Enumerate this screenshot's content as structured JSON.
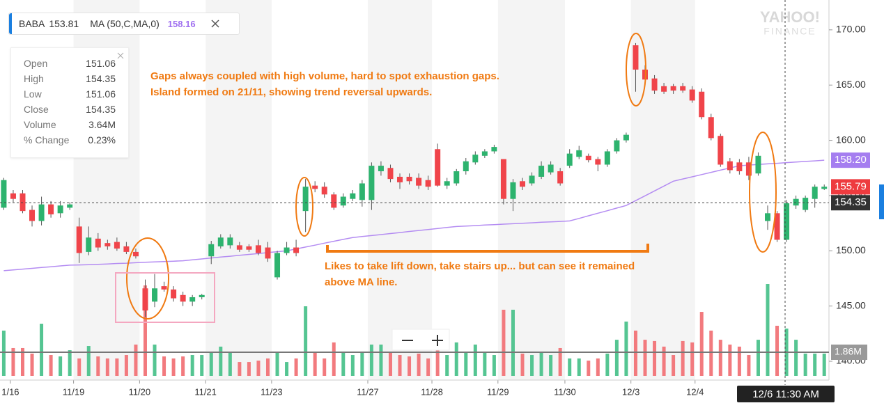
{
  "chart_data": {
    "type": "candlestick",
    "legend": {
      "symbol": "BABA",
      "price": "153.81",
      "ma_label": "MA (50,C,MA,0)",
      "ma_value": "158.16"
    },
    "info": [
      [
        "Open",
        "151.06"
      ],
      [
        "High",
        "154.35"
      ],
      [
        "Low",
        "151.06"
      ],
      [
        "Close",
        "154.35"
      ],
      [
        "Volume",
        "3.64M"
      ],
      [
        "% Change",
        "0.23%"
      ]
    ],
    "annotations": [
      "Gaps always coupled with high volume, hard to spot exhaustion gaps.",
      "Island formed on 21/11, showing trend reversal upwards.",
      "Likes to take lift down, take stairs up... but can see it remained",
      "above MA line."
    ],
    "watermark": [
      "YAHOO!",
      "FINANCE"
    ],
    "crosshair_label": "12/6 11:30 AM",
    "up_color": "#2db36e",
    "down_color": "#f0444a",
    "up_volume_color": "#55c592",
    "down_volume_color": "#f27a7e",
    "ma_color": "#b48cf2",
    "ylim": [
      138.3,
      172.7
    ],
    "yticks": [
      {
        "value": 140,
        "label": "140.00"
      },
      {
        "value": 145,
        "label": "145.00"
      },
      {
        "value": 150,
        "label": "150.00"
      },
      {
        "value": 155,
        "label": "155.00"
      },
      {
        "value": 160,
        "label": "160.00"
      },
      {
        "value": 165,
        "label": "165.00"
      },
      {
        "value": 170,
        "label": "170.00"
      }
    ],
    "xlim": [
      -0.4,
      87.5
    ],
    "xticks": [
      {
        "value": 0.7,
        "label": "1/16"
      },
      {
        "value": 7.4,
        "label": "11/19"
      },
      {
        "value": 14.4,
        "label": "11/20"
      },
      {
        "value": 21.4,
        "label": "11/21"
      },
      {
        "value": 28.4,
        "label": "11/23"
      },
      {
        "value": 38.6,
        "label": "11/27"
      },
      {
        "value": 45.4,
        "label": "11/28"
      },
      {
        "value": 52.4,
        "label": "11/29"
      },
      {
        "value": 59.5,
        "label": "11/30"
      },
      {
        "value": 66.5,
        "label": "12/3"
      },
      {
        "value": 73.3,
        "label": "12/4"
      }
    ],
    "price_badges": [
      {
        "value": 158.2,
        "label": "158.20",
        "color": "#a57ef0"
      },
      {
        "value": 155.79,
        "label": "155.79",
        "color": "#ee3b3f"
      },
      {
        "value": 154.35,
        "label": "154.35",
        "color": "#333333"
      }
    ],
    "volume_badge": {
      "value": 1.86,
      "label": "1.86M"
    },
    "open": [
      153.9,
      155.2,
      155.2,
      153.7,
      152.7,
      154.2,
      153.4,
      153.9,
      152.2,
      149.9,
      151.1,
      150.7,
      150.8,
      150.4,
      149.9,
      146.6,
      145.4,
      146.8,
      146.5,
      146.0,
      145.4,
      145.8,
      149.5,
      150.4,
      150.5,
      150.5,
      150.4,
      150.5,
      150.3,
      147.6,
      149.8,
      150.3,
      153.6,
      155.9,
      155.8,
      155.1,
      154.1,
      154.7,
      154.6,
      154.6,
      157.2,
      157.5,
      156.7,
      156.7,
      156.6,
      156.4,
      159.2,
      155.9,
      156.1,
      157.2,
      158.0,
      158.6,
      159.0,
      158.3,
      154.7,
      156.3,
      156.1,
      156.7,
      157.1,
      157.2,
      157.7,
      158.5,
      158.6,
      158.3,
      157.8,
      159.0,
      160.0,
      168.6,
      166.4,
      165.6,
      164.9,
      164.9,
      164.9,
      164.6,
      164.4,
      162.1,
      160.4,
      158.1,
      158.0,
      158.0,
      157.0,
      152.7,
      153.4,
      151.0,
      154.1,
      153.7,
      154.7,
      155.6
    ],
    "high": [
      156.6,
      155.5,
      155.5,
      154.1,
      154.9,
      154.5,
      154.5,
      154.4,
      153.0,
      152.2,
      151.6,
      151.0,
      151.2,
      150.8,
      150.2,
      147.4,
      147.9,
      147.2,
      146.8,
      146.3,
      146.0,
      146.1,
      150.9,
      151.5,
      151.5,
      150.8,
      150.6,
      151.0,
      150.8,
      150.0,
      150.8,
      151.0,
      156.5,
      156.3,
      156.2,
      155.3,
      155.2,
      155.5,
      156.4,
      158.0,
      158.1,
      157.8,
      157.0,
      157.0,
      157.0,
      156.8,
      159.7,
      156.6,
      157.4,
      158.4,
      159.0,
      159.2,
      159.6,
      158.3,
      156.5,
      156.6,
      157.1,
      158.1,
      158.1,
      157.5,
      159.2,
      159.5,
      158.8,
      158.5,
      159.2,
      160.2,
      160.7,
      168.8,
      166.8,
      165.9,
      165.2,
      165.1,
      165.2,
      164.9,
      164.7,
      162.4,
      160.6,
      158.4,
      158.3,
      158.5,
      158.9,
      154.1,
      153.6,
      154.6,
      155.0,
      155.0,
      156.0,
      156.0
    ],
    "low": [
      153.7,
      154.4,
      153.4,
      152.2,
      152.3,
      153.0,
      153.0,
      153.7,
      148.9,
      149.6,
      150.0,
      150.1,
      150.0,
      149.7,
      149.3,
      144.0,
      144.9,
      146.3,
      145.4,
      145.0,
      145.0,
      145.6,
      148.8,
      150.2,
      150.2,
      149.9,
      149.9,
      149.6,
      149.0,
      147.4,
      149.6,
      149.5,
      151.7,
      155.3,
      154.8,
      153.7,
      153.9,
      154.5,
      154.0,
      153.7,
      156.8,
      156.2,
      155.6,
      156.0,
      155.6,
      155.5,
      155.8,
      155.6,
      155.9,
      156.9,
      157.8,
      158.4,
      158.8,
      154.2,
      153.6,
      155.5,
      155.9,
      156.5,
      156.9,
      155.9,
      157.5,
      158.3,
      158.0,
      157.2,
      157.6,
      158.8,
      159.8,
      164.4,
      165.2,
      164.2,
      164.2,
      164.2,
      164.3,
      163.4,
      161.9,
      160.0,
      157.6,
      157.0,
      156.9,
      156.4,
      156.8,
      151.9,
      150.8,
      150.8,
      153.8,
      153.5,
      153.9,
      155.5
    ],
    "close": [
      156.4,
      154.7,
      153.6,
      152.7,
      154.2,
      153.3,
      154.1,
      154.2,
      149.8,
      151.2,
      150.3,
      150.4,
      150.2,
      149.9,
      149.5,
      144.6,
      146.6,
      146.5,
      145.7,
      145.4,
      145.8,
      146.0,
      150.6,
      151.2,
      151.2,
      150.1,
      150.1,
      149.8,
      149.3,
      149.8,
      150.3,
      149.8,
      155.8,
      155.6,
      155.1,
      153.9,
      154.9,
      155.2,
      156.1,
      157.7,
      157.7,
      156.5,
      156.2,
      156.3,
      155.9,
      155.8,
      155.9,
      156.3,
      157.2,
      158.1,
      158.7,
      159.0,
      159.4,
      154.7,
      156.2,
      155.8,
      156.8,
      157.7,
      157.8,
      156.1,
      158.8,
      159.1,
      158.2,
      157.8,
      159.0,
      160.0,
      160.5,
      166.4,
      165.5,
      164.5,
      164.4,
      164.5,
      164.5,
      163.6,
      162.1,
      160.2,
      157.8,
      157.3,
      157.2,
      156.8,
      158.6,
      153.4,
      151.0,
      154.3,
      154.7,
      154.8,
      155.8,
      155.8
    ],
    "volume": [
      3.56,
      2.19,
      2.19,
      1.75,
      4.1,
      1.64,
      1.53,
      2.02,
      1.37,
      2.35,
      1.53,
      1.37,
      1.37,
      1.64,
      2.46,
      7.11,
      2.46,
      1.53,
      1.37,
      1.53,
      1.64,
      1.64,
      1.91,
      2.3,
      1.91,
      1.09,
      1.09,
      1.2,
      1.37,
      1.91,
      1.09,
      1.37,
      5.47,
      1.91,
      1.37,
      2.63,
      1.91,
      1.64,
      1.91,
      2.46,
      2.46,
      1.91,
      1.64,
      1.53,
      1.75,
      1.37,
      3.56,
      1.64,
      2.63,
      1.91,
      2.46,
      1.91,
      1.64,
      5.2,
      5.2,
      1.75,
      1.64,
      1.91,
      1.64,
      2.19,
      1.37,
      1.37,
      1.2,
      1.37,
      1.75,
      2.84,
      4.27,
      3.56,
      2.84,
      2.74,
      2.3,
      1.64,
      2.74,
      2.63,
      5.03,
      3.56,
      2.84,
      2.46,
      2.3,
      1.64,
      2.84,
      7.22,
      3.94,
      3.72,
      2.84,
      1.75,
      1.75,
      1.75
    ],
    "ma": [
      148.2,
      148.27,
      148.34,
      148.41,
      148.49,
      148.56,
      148.63,
      148.7,
      148.72,
      148.74,
      148.77,
      148.81,
      148.85,
      148.88,
      148.92,
      148.96,
      148.99,
      149.03,
      149.06,
      149.1,
      149.18,
      149.26,
      149.35,
      149.43,
      149.51,
      149.59,
      149.67,
      149.75,
      149.84,
      149.92,
      150.0,
      150.17,
      150.34,
      150.51,
      150.69,
      150.86,
      151.03,
      151.2,
      151.29,
      151.38,
      151.47,
      151.56,
      151.65,
      151.75,
      151.84,
      151.93,
      152.02,
      152.11,
      152.2,
      152.24,
      152.28,
      152.33,
      152.37,
      152.41,
      152.45,
      152.49,
      152.53,
      152.58,
      152.62,
      152.66,
      152.7,
      152.93,
      153.17,
      153.4,
      153.63,
      153.87,
      154.1,
      154.54,
      154.98,
      155.42,
      155.86,
      156.3,
      156.5,
      156.7,
      156.9,
      157.1,
      157.3,
      157.5,
      157.7,
      157.76,
      157.81,
      157.87,
      157.92,
      157.98,
      158.03,
      158.09,
      158.14,
      158.2
    ]
  }
}
